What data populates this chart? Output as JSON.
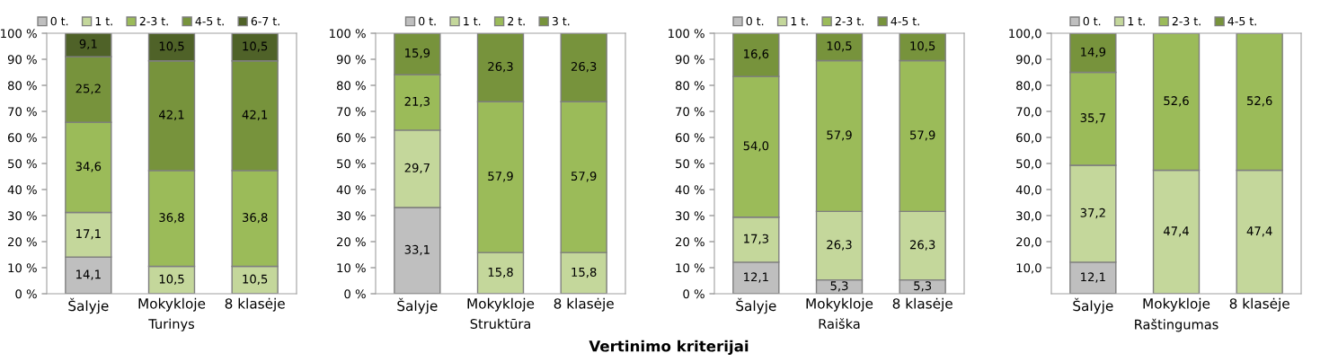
{
  "chart_data": [
    {
      "type": "bar",
      "stacked": true,
      "xlabel": "Turinys",
      "categories": [
        "Šalyje",
        "Mokykloje",
        "8 klasėje"
      ],
      "ylim": [
        0,
        100
      ],
      "yticks": [
        {
          "value": 0,
          "label": "0 %"
        },
        {
          "value": 10,
          "label": "10 %"
        },
        {
          "value": 20,
          "label": "20 %"
        },
        {
          "value": 30,
          "label": "30 %"
        },
        {
          "value": 40,
          "label": "40 %"
        },
        {
          "value": 50,
          "label": "50 %"
        },
        {
          "value": 60,
          "label": "60 %"
        },
        {
          "value": 70,
          "label": "70 %"
        },
        {
          "value": 80,
          "label": "80 %"
        },
        {
          "value": 90,
          "label": "90 %"
        },
        {
          "value": 100,
          "label": "100 %"
        }
      ],
      "legend": "top",
      "grid": false,
      "series": [
        {
          "name": "0 t.",
          "color": "#bfbfbf",
          "values": [
            14.1,
            null,
            null
          ],
          "value_labels": [
            "14,1",
            null,
            null
          ]
        },
        {
          "name": "1 t.",
          "color": "#c4d79b",
          "values": [
            17.1,
            10.5,
            10.5
          ],
          "value_labels": [
            "17,1",
            "10,5",
            "10,5"
          ]
        },
        {
          "name": "2-3 t.",
          "color": "#9bbb59",
          "values": [
            34.6,
            36.8,
            36.8
          ],
          "value_labels": [
            "34,6",
            "36,8",
            "36,8"
          ]
        },
        {
          "name": "4-5 t.",
          "color": "#77933c",
          "values": [
            25.2,
            42.1,
            42.1
          ],
          "value_labels": [
            "25,2",
            "42,1",
            "42,1"
          ]
        },
        {
          "name": "6-7 t.",
          "color": "#4f6228",
          "values": [
            9.1,
            10.5,
            10.5
          ],
          "value_labels": [
            "9,1",
            "10,5",
            "10,5"
          ]
        }
      ],
      "annotations": [
        "Vertinimo kriterijai"
      ]
    },
    {
      "type": "bar",
      "stacked": true,
      "xlabel": "Struktūra",
      "categories": [
        "Šalyje",
        "Mokykloje",
        "8 klasėje"
      ],
      "ylim": [
        0,
        100
      ],
      "yticks": [
        {
          "value": 0,
          "label": "0 %"
        },
        {
          "value": 10,
          "label": "10 %"
        },
        {
          "value": 20,
          "label": "20 %"
        },
        {
          "value": 30,
          "label": "30 %"
        },
        {
          "value": 40,
          "label": "40 %"
        },
        {
          "value": 50,
          "label": "50 %"
        },
        {
          "value": 60,
          "label": "60 %"
        },
        {
          "value": 70,
          "label": "70 %"
        },
        {
          "value": 80,
          "label": "80 %"
        },
        {
          "value": 90,
          "label": "90 %"
        },
        {
          "value": 100,
          "label": "100 %"
        }
      ],
      "legend": "top",
      "grid": false,
      "series": [
        {
          "name": "0 t.",
          "color": "#bfbfbf",
          "values": [
            33.1,
            null,
            null
          ],
          "value_labels": [
            "33,1",
            null,
            null
          ]
        },
        {
          "name": "1 t.",
          "color": "#c4d79b",
          "values": [
            29.7,
            15.8,
            15.8
          ],
          "value_labels": [
            "29,7",
            "15,8",
            "15,8"
          ]
        },
        {
          "name": "2 t.",
          "color": "#9bbb59",
          "values": [
            21.3,
            57.9,
            57.9
          ],
          "value_labels": [
            "21,3",
            "57,9",
            "57,9"
          ]
        },
        {
          "name": "3 t.",
          "color": "#77933c",
          "values": [
            15.9,
            26.3,
            26.3
          ],
          "value_labels": [
            "15,9",
            "26,3",
            "26,3"
          ]
        }
      ]
    },
    {
      "type": "bar",
      "stacked": true,
      "xlabel": "Raiška",
      "categories": [
        "Šalyje",
        "Mokykloje",
        "8 klasėje"
      ],
      "ylim": [
        0,
        100
      ],
      "yticks": [
        {
          "value": 0,
          "label": "0 %"
        },
        {
          "value": 10,
          "label": "10 %"
        },
        {
          "value": 20,
          "label": "20 %"
        },
        {
          "value": 30,
          "label": "30 %"
        },
        {
          "value": 40,
          "label": "40 %"
        },
        {
          "value": 50,
          "label": "50 %"
        },
        {
          "value": 60,
          "label": "60 %"
        },
        {
          "value": 70,
          "label": "70 %"
        },
        {
          "value": 80,
          "label": "80 %"
        },
        {
          "value": 90,
          "label": "90 %"
        },
        {
          "value": 100,
          "label": "100 %"
        }
      ],
      "legend": "top",
      "grid": false,
      "series": [
        {
          "name": "0 t.",
          "color": "#bfbfbf",
          "values": [
            12.1,
            5.3,
            5.3
          ],
          "value_labels": [
            "12,1",
            "5,3",
            "5,3"
          ]
        },
        {
          "name": "1 t.",
          "color": "#c4d79b",
          "values": [
            17.3,
            26.3,
            26.3
          ],
          "value_labels": [
            "17,3",
            "26,3",
            "26,3"
          ]
        },
        {
          "name": "2-3 t.",
          "color": "#9bbb59",
          "values": [
            54.0,
            57.9,
            57.9
          ],
          "value_labels": [
            "54,0",
            "57,9",
            "57,9"
          ]
        },
        {
          "name": "4-5 t.",
          "color": "#77933c",
          "values": [
            16.6,
            10.5,
            10.5
          ],
          "value_labels": [
            "16,6",
            "10,5",
            "10,5"
          ]
        }
      ]
    },
    {
      "type": "bar",
      "stacked": true,
      "xlabel": "Raštingumas",
      "categories": [
        "Šalyje",
        "Mokykloje",
        "8 klasėje"
      ],
      "ylim": [
        0,
        100
      ],
      "yticks": [
        {
          "value": 10,
          "label": "10,0"
        },
        {
          "value": 20,
          "label": "20,0"
        },
        {
          "value": 30,
          "label": "30,0"
        },
        {
          "value": 40,
          "label": "40,0"
        },
        {
          "value": 50,
          "label": "50,0"
        },
        {
          "value": 60,
          "label": "60,0"
        },
        {
          "value": 70,
          "label": "70,0"
        },
        {
          "value": 80,
          "label": "80,0"
        },
        {
          "value": 90,
          "label": "90,0"
        },
        {
          "value": 100,
          "label": "100,0"
        }
      ],
      "legend": "top",
      "grid": false,
      "series": [
        {
          "name": "0 t.",
          "color": "#bfbfbf",
          "values": [
            12.1,
            null,
            null
          ],
          "value_labels": [
            "12,1",
            null,
            null
          ]
        },
        {
          "name": "1 t.",
          "color": "#c4d79b",
          "values": [
            37.2,
            47.4,
            47.4
          ],
          "value_labels": [
            "37,2",
            "47,4",
            "47,4"
          ]
        },
        {
          "name": "2-3 t.",
          "color": "#9bbb59",
          "values": [
            35.7,
            52.6,
            52.6
          ],
          "value_labels": [
            "35,7",
            "52,6",
            "52,6"
          ]
        },
        {
          "name": "4-5 t.",
          "color": "#77933c",
          "values": [
            14.9,
            null,
            null
          ],
          "value_labels": [
            "14,9",
            null,
            null
          ]
        }
      ]
    }
  ]
}
